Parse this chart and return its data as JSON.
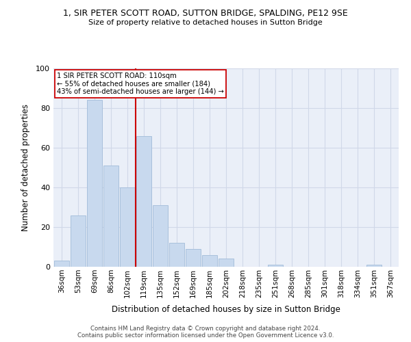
{
  "title": "1, SIR PETER SCOTT ROAD, SUTTON BRIDGE, SPALDING, PE12 9SE",
  "subtitle": "Size of property relative to detached houses in Sutton Bridge",
  "xlabel": "Distribution of detached houses by size in Sutton Bridge",
  "ylabel": "Number of detached properties",
  "categories": [
    "36sqm",
    "53sqm",
    "69sqm",
    "86sqm",
    "102sqm",
    "119sqm",
    "135sqm",
    "152sqm",
    "169sqm",
    "185sqm",
    "202sqm",
    "218sqm",
    "235sqm",
    "251sqm",
    "268sqm",
    "285sqm",
    "301sqm",
    "318sqm",
    "334sqm",
    "351sqm",
    "367sqm"
  ],
  "values": [
    3,
    26,
    84,
    51,
    40,
    66,
    31,
    12,
    9,
    6,
    4,
    0,
    0,
    1,
    0,
    0,
    0,
    0,
    0,
    1,
    0
  ],
  "bar_color": "#c8d9ee",
  "bar_edge_color": "#a8c0dc",
  "vline_x_index": 4.5,
  "vline_color": "#cc0000",
  "annotation_lines": [
    "1 SIR PETER SCOTT ROAD: 110sqm",
    "← 55% of detached houses are smaller (184)",
    "43% of semi-detached houses are larger (144) →"
  ],
  "annotation_box_color": "#cc0000",
  "ylim": [
    0,
    100
  ],
  "yticks": [
    0,
    20,
    40,
    60,
    80,
    100
  ],
  "grid_color": "#d0d8e8",
  "bg_color": "#eaeff8",
  "footer_line1": "Contains HM Land Registry data © Crown copyright and database right 2024.",
  "footer_line2": "Contains public sector information licensed under the Open Government Licence v3.0."
}
